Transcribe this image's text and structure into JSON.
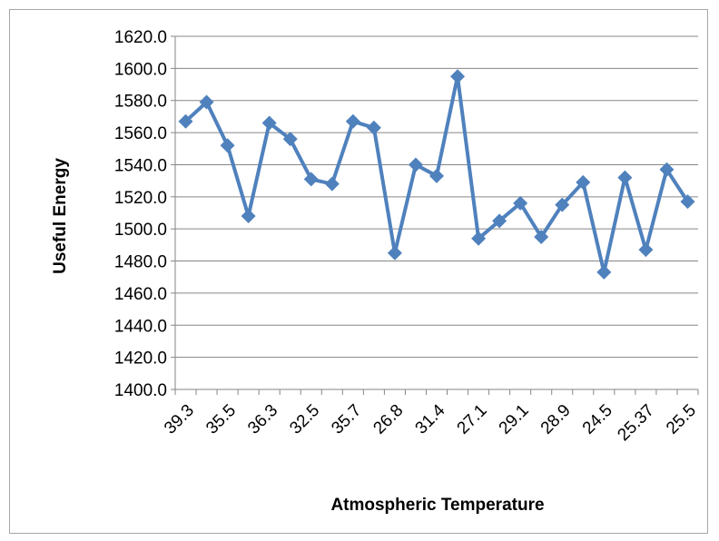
{
  "chart_data": {
    "type": "line",
    "title": "",
    "xlabel": "Atmospheric Temperature",
    "ylabel": "Useful Energy",
    "ylim": [
      1400,
      1620
    ],
    "y_ticks": [
      "1400.0",
      "1420.0",
      "1440.0",
      "1460.0",
      "1480.0",
      "1500.0",
      "1520.0",
      "1540.0",
      "1560.0",
      "1580.0",
      "1600.0",
      "1620.0"
    ],
    "x_tick_labels": [
      "39.3",
      "35.5",
      "36.3",
      "32.5",
      "35.7",
      "26.8",
      "31.4",
      "27.1",
      "29.1",
      "28.9",
      "24.5",
      "25.37",
      "25.5"
    ],
    "label_every": 2,
    "point_count": 25,
    "grid": true,
    "legend": "none",
    "marker": "diamond",
    "series": [
      {
        "color": "#4f81bd",
        "values": [
          1567,
          1579,
          1552,
          1508,
          1566,
          1556,
          1531,
          1528,
          1567,
          1563,
          1485,
          1540,
          1533,
          1595,
          1494,
          1505,
          1516,
          1495,
          1515,
          1529,
          1473,
          1532,
          1487,
          1537,
          1517
        ]
      }
    ]
  }
}
